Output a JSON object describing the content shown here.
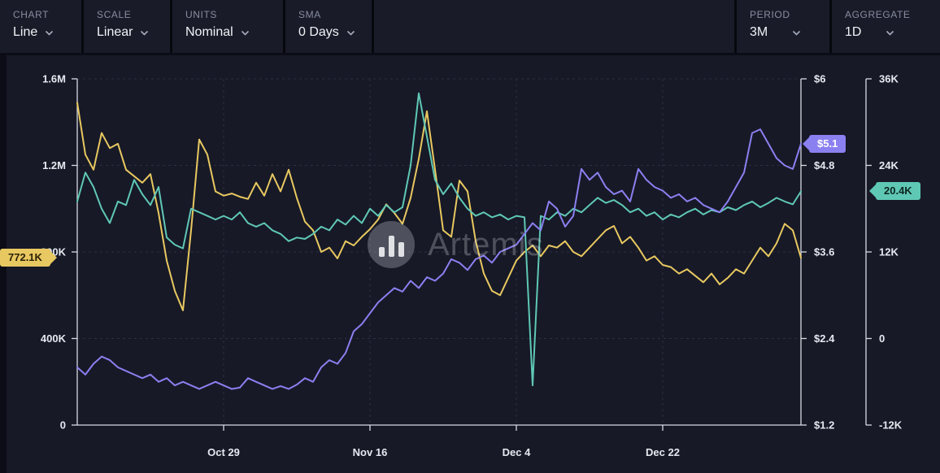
{
  "toolbar": {
    "left": [
      {
        "label": "CHART",
        "value": "Line"
      },
      {
        "label": "SCALE",
        "value": "Linear"
      },
      {
        "label": "UNITS",
        "value": "Nominal"
      },
      {
        "label": "SMA",
        "value": "0 Days"
      }
    ],
    "right": [
      {
        "label": "PERIOD",
        "value": "3M"
      },
      {
        "label": "AGGREGATE",
        "value": "1D"
      }
    ]
  },
  "watermark": {
    "text": "Artemis",
    "logo": "artemis-bar-chart-logo"
  },
  "badges": {
    "left_value": "772.1K",
    "price_value": "$5.1",
    "right2_value": "20.4K"
  },
  "colors": {
    "yellow": "#e8c860",
    "purple": "#8b80f0",
    "teal": "#5fc8b5",
    "panel": "#171927",
    "page": "#0b0c15",
    "grid": "#2d3040",
    "axis": "#d6d9e2"
  },
  "chart_data": {
    "type": "line",
    "title": "",
    "xlabel": "",
    "ylabel": "",
    "grid": true,
    "legend_position": "none",
    "num_points": 90,
    "x_ticks": [
      {
        "label": "Oct 29",
        "index": 18
      },
      {
        "label": "Nov 16",
        "index": 36
      },
      {
        "label": "Dec 4",
        "index": 54
      },
      {
        "label": "Dec 22",
        "index": 72
      }
    ],
    "axes": {
      "left": {
        "labels": [
          "1.6M",
          "1.2M",
          "800K",
          "400K",
          "0"
        ],
        "min": 0,
        "max": 1600,
        "unit": "K"
      },
      "right_price": {
        "labels": [
          "$6",
          "$4.8",
          "$3.6",
          "$2.4",
          "$1.2"
        ],
        "min": 1.2,
        "max": 6,
        "unit": "$"
      },
      "right_secondary": {
        "labels": [
          "36K",
          "24K",
          "12K",
          "0",
          "-12K"
        ],
        "min": -12,
        "max": 36,
        "unit": "K"
      }
    },
    "series": [
      {
        "name": "yellow-left-axis-series",
        "axis": "left",
        "color": "#e8c860",
        "last_value_label": "772.1K",
        "values": [
          1490,
          1250,
          1180,
          1350,
          1280,
          1300,
          1180,
          1150,
          1120,
          1160,
          980,
          760,
          620,
          530,
          900,
          1320,
          1250,
          1080,
          1060,
          1070,
          1055,
          1045,
          1120,
          1060,
          1160,
          1080,
          1180,
          1050,
          940,
          900,
          800,
          820,
          770,
          850,
          830,
          870,
          905,
          950,
          1020,
          980,
          930,
          1050,
          1230,
          1450,
          1180,
          900,
          870,
          1130,
          1080,
          850,
          700,
          620,
          600,
          680,
          760,
          800,
          830,
          780,
          830,
          820,
          850,
          800,
          780,
          820,
          860,
          900,
          920,
          840,
          870,
          820,
          760,
          780,
          740,
          730,
          700,
          720,
          690,
          660,
          700,
          650,
          680,
          720,
          700,
          760,
          820,
          780,
          840,
          930,
          900,
          772.1
        ]
      },
      {
        "name": "teal-secondary-axis-series",
        "axis": "right_secondary",
        "color": "#5fc8b5",
        "last_value_label": "20.4K",
        "values": [
          19,
          23,
          21,
          18,
          16,
          19,
          18.5,
          22,
          20,
          18.5,
          21,
          14,
          13,
          12.5,
          18,
          17.5,
          17,
          16.5,
          17,
          16.5,
          17.5,
          16,
          15.5,
          16,
          15,
          14.5,
          13.5,
          14,
          13.8,
          14.5,
          15.5,
          15,
          16.5,
          15.8,
          17,
          16,
          18,
          17,
          18.5,
          17.5,
          18.2,
          24,
          34,
          28,
          22,
          20,
          21.5,
          19.5,
          18,
          17,
          17.5,
          16.8,
          17.2,
          16.5,
          17,
          16.8,
          -6.5,
          17,
          16.5,
          17.5,
          17,
          18,
          17.5,
          18.5,
          19.5,
          18.8,
          19.2,
          18.5,
          17.5,
          18,
          17,
          17.5,
          16.5,
          17.2,
          16.8,
          17.5,
          18,
          17.2,
          17.8,
          17.5,
          18.2,
          17.8,
          18.5,
          19,
          18.2,
          18.8,
          19.5,
          19,
          18.6,
          20.4
        ]
      },
      {
        "name": "purple-price-series",
        "axis": "right_price",
        "color": "#8b80f0",
        "last_value_label": "$5.1",
        "values": [
          2.0,
          1.9,
          2.05,
          2.15,
          2.1,
          2.0,
          1.95,
          1.9,
          1.85,
          1.9,
          1.8,
          1.85,
          1.75,
          1.8,
          1.75,
          1.7,
          1.75,
          1.8,
          1.75,
          1.7,
          1.72,
          1.85,
          1.8,
          1.75,
          1.7,
          1.74,
          1.7,
          1.76,
          1.85,
          1.8,
          2.0,
          2.1,
          2.05,
          2.2,
          2.5,
          2.6,
          2.75,
          2.9,
          3.0,
          3.1,
          3.05,
          3.2,
          3.1,
          3.25,
          3.2,
          3.3,
          3.5,
          3.45,
          3.35,
          3.5,
          3.55,
          3.45,
          3.6,
          3.65,
          3.7,
          3.85,
          4.0,
          3.9,
          4.3,
          4.2,
          3.95,
          4.1,
          4.75,
          4.6,
          4.7,
          4.5,
          4.4,
          4.45,
          4.3,
          4.75,
          4.6,
          4.5,
          4.45,
          4.35,
          4.4,
          4.3,
          4.35,
          4.25,
          4.2,
          4.15,
          4.3,
          4.5,
          4.7,
          5.25,
          5.3,
          5.1,
          4.9,
          4.8,
          4.75,
          5.1
        ]
      }
    ]
  }
}
